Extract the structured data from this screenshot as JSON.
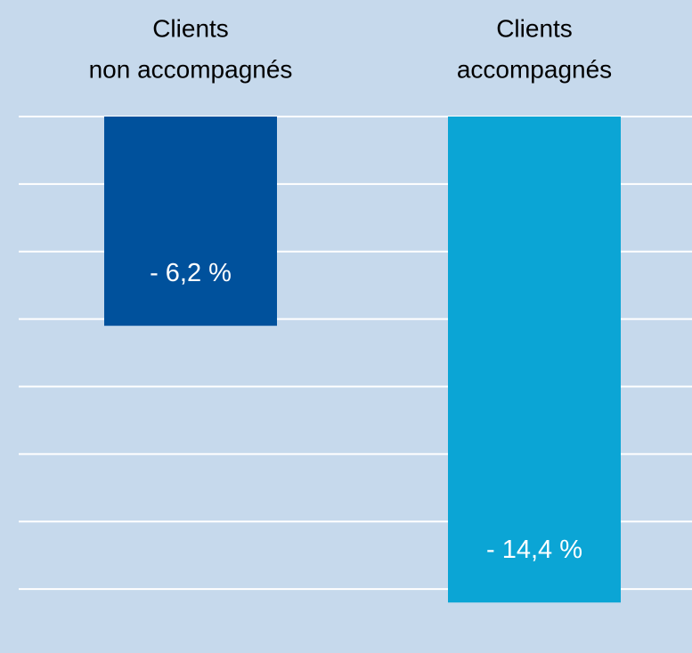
{
  "chart_data": {
    "type": "bar",
    "categories": [
      [
        "Clients",
        "non accompagnés"
      ],
      [
        "Clients",
        "accompagnés"
      ]
    ],
    "values": [
      -6.2,
      -14.4
    ],
    "value_labels": [
      "- 6,2 %",
      "- 14,4 %"
    ],
    "colors": [
      "#00519c",
      "#0ba5d5"
    ],
    "ylim": [
      -15,
      0
    ],
    "yticks": [
      0,
      -2,
      -4,
      -6,
      -8,
      -10,
      -12,
      -14
    ],
    "grid": true
  }
}
